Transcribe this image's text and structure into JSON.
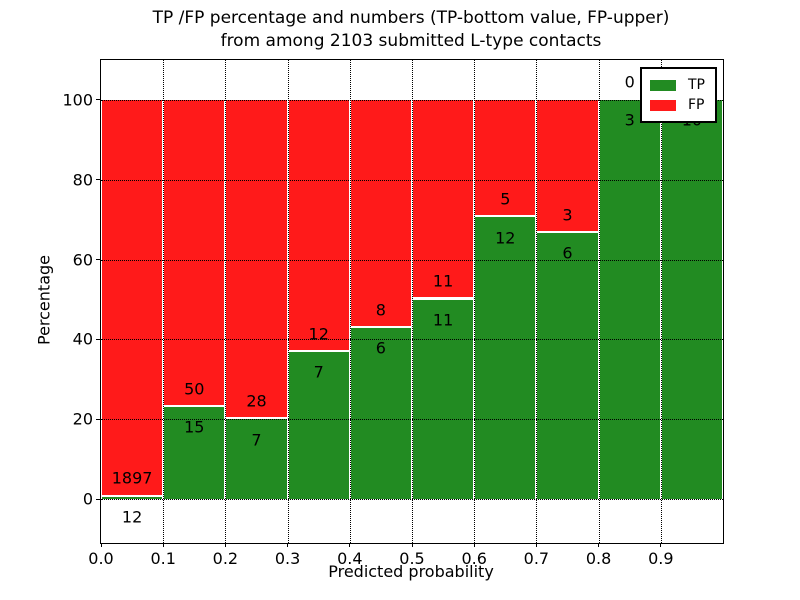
{
  "figure": {
    "title_line1": "TP /FP percentage and numbers (TP-bottom value, FP-upper)",
    "title_line2": "from among 2103 submitted L-type contacts",
    "xlabel": "Predicted probability",
    "ylabel": "Percentage"
  },
  "legend": {
    "position": "upper right",
    "items": [
      {
        "name": "TP",
        "label": "TP",
        "color": "#228b22"
      },
      {
        "name": "FP",
        "label": "FP",
        "color": "#ff1a1a"
      }
    ]
  },
  "chart_data": {
    "type": "bar",
    "stacked": true,
    "normalized_to_percent": true,
    "title": "TP /FP percentage and numbers (TP-bottom value, FP-upper) from among 2103 submitted L-type contacts",
    "xlabel": "Predicted probability",
    "ylabel": "Percentage",
    "total_submitted": 2103,
    "xlim": [
      0.0,
      1.0
    ],
    "ylim": [
      -11,
      110
    ],
    "x_tick_values": [
      0.0,
      0.1,
      0.2,
      0.3,
      0.4,
      0.5,
      0.6,
      0.7,
      0.8,
      0.9
    ],
    "x_tick_labels": [
      "0.0",
      "0.1",
      "0.2",
      "0.3",
      "0.4",
      "0.5",
      "0.6",
      "0.7",
      "0.8",
      "0.9"
    ],
    "y_tick_values": [
      0,
      20,
      40,
      60,
      80,
      100
    ],
    "y_tick_labels": [
      "0",
      "20",
      "40",
      "60",
      "80",
      "100"
    ],
    "grid": true,
    "colors": {
      "tp": "#228b22",
      "fp": "#ff1a1a"
    },
    "bin_edges": [
      0.0,
      0.1,
      0.2,
      0.3,
      0.4,
      0.5,
      0.6,
      0.7,
      0.8,
      0.9,
      1.0
    ],
    "series": [
      {
        "name": "TP",
        "counts": [
          12,
          15,
          7,
          7,
          6,
          11,
          12,
          6,
          3,
          10
        ]
      },
      {
        "name": "FP",
        "counts": [
          1897,
          50,
          28,
          12,
          8,
          11,
          5,
          3,
          0,
          null
        ]
      }
    ],
    "bins": [
      {
        "range": [
          0.0,
          0.1
        ],
        "tp": 12,
        "fp": 1897,
        "tp_pct": 0.63
      },
      {
        "range": [
          0.1,
          0.2
        ],
        "tp": 15,
        "fp": 50,
        "tp_pct": 23.08
      },
      {
        "range": [
          0.2,
          0.3
        ],
        "tp": 7,
        "fp": 28,
        "tp_pct": 20.0
      },
      {
        "range": [
          0.3,
          0.4
        ],
        "tp": 7,
        "fp": 12,
        "tp_pct": 36.84
      },
      {
        "range": [
          0.4,
          0.5
        ],
        "tp": 6,
        "fp": 8,
        "tp_pct": 42.86
      },
      {
        "range": [
          0.5,
          0.6
        ],
        "tp": 11,
        "fp": 11,
        "tp_pct": 50.0
      },
      {
        "range": [
          0.6,
          0.7
        ],
        "tp": 12,
        "fp": 5,
        "tp_pct": 70.59
      },
      {
        "range": [
          0.7,
          0.8
        ],
        "tp": 6,
        "fp": 3,
        "tp_pct": 66.67
      },
      {
        "range": [
          0.8,
          0.9
        ],
        "tp": 3,
        "fp": 0,
        "tp_pct": 100.0
      },
      {
        "range": [
          0.9,
          1.0
        ],
        "tp": 10,
        "fp": null,
        "tp_pct": 100.0
      }
    ]
  }
}
